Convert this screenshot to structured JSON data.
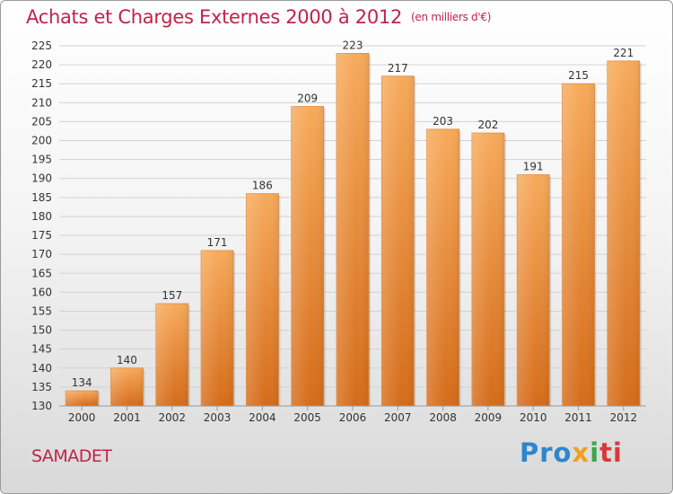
{
  "header": {
    "title": "Achats et Charges Externes 2000 à 2012",
    "subtitle": "(en milliers d'€)"
  },
  "footer": {
    "location": "SAMADET",
    "logo": "Proxiti"
  },
  "colors": {
    "bar_light": "#f6a655",
    "bar_dark": "#d96f1c",
    "title": "#c0234a"
  },
  "chart_data": {
    "type": "bar",
    "title": "Achats et Charges Externes 2000 à 2012",
    "subtitle": "(en milliers d'€)",
    "categories": [
      "2000",
      "2001",
      "2002",
      "2003",
      "2004",
      "2005",
      "2006",
      "2007",
      "2008",
      "2009",
      "2010",
      "2011",
      "2012"
    ],
    "values": [
      134,
      140,
      157,
      171,
      186,
      209,
      223,
      217,
      203,
      202,
      191,
      215,
      221
    ],
    "ylim": [
      130,
      225
    ],
    "yticks": [
      130,
      135,
      140,
      145,
      150,
      155,
      160,
      165,
      170,
      175,
      180,
      185,
      190,
      195,
      200,
      205,
      210,
      215,
      220,
      225
    ],
    "grid": true,
    "data_labels": true
  }
}
